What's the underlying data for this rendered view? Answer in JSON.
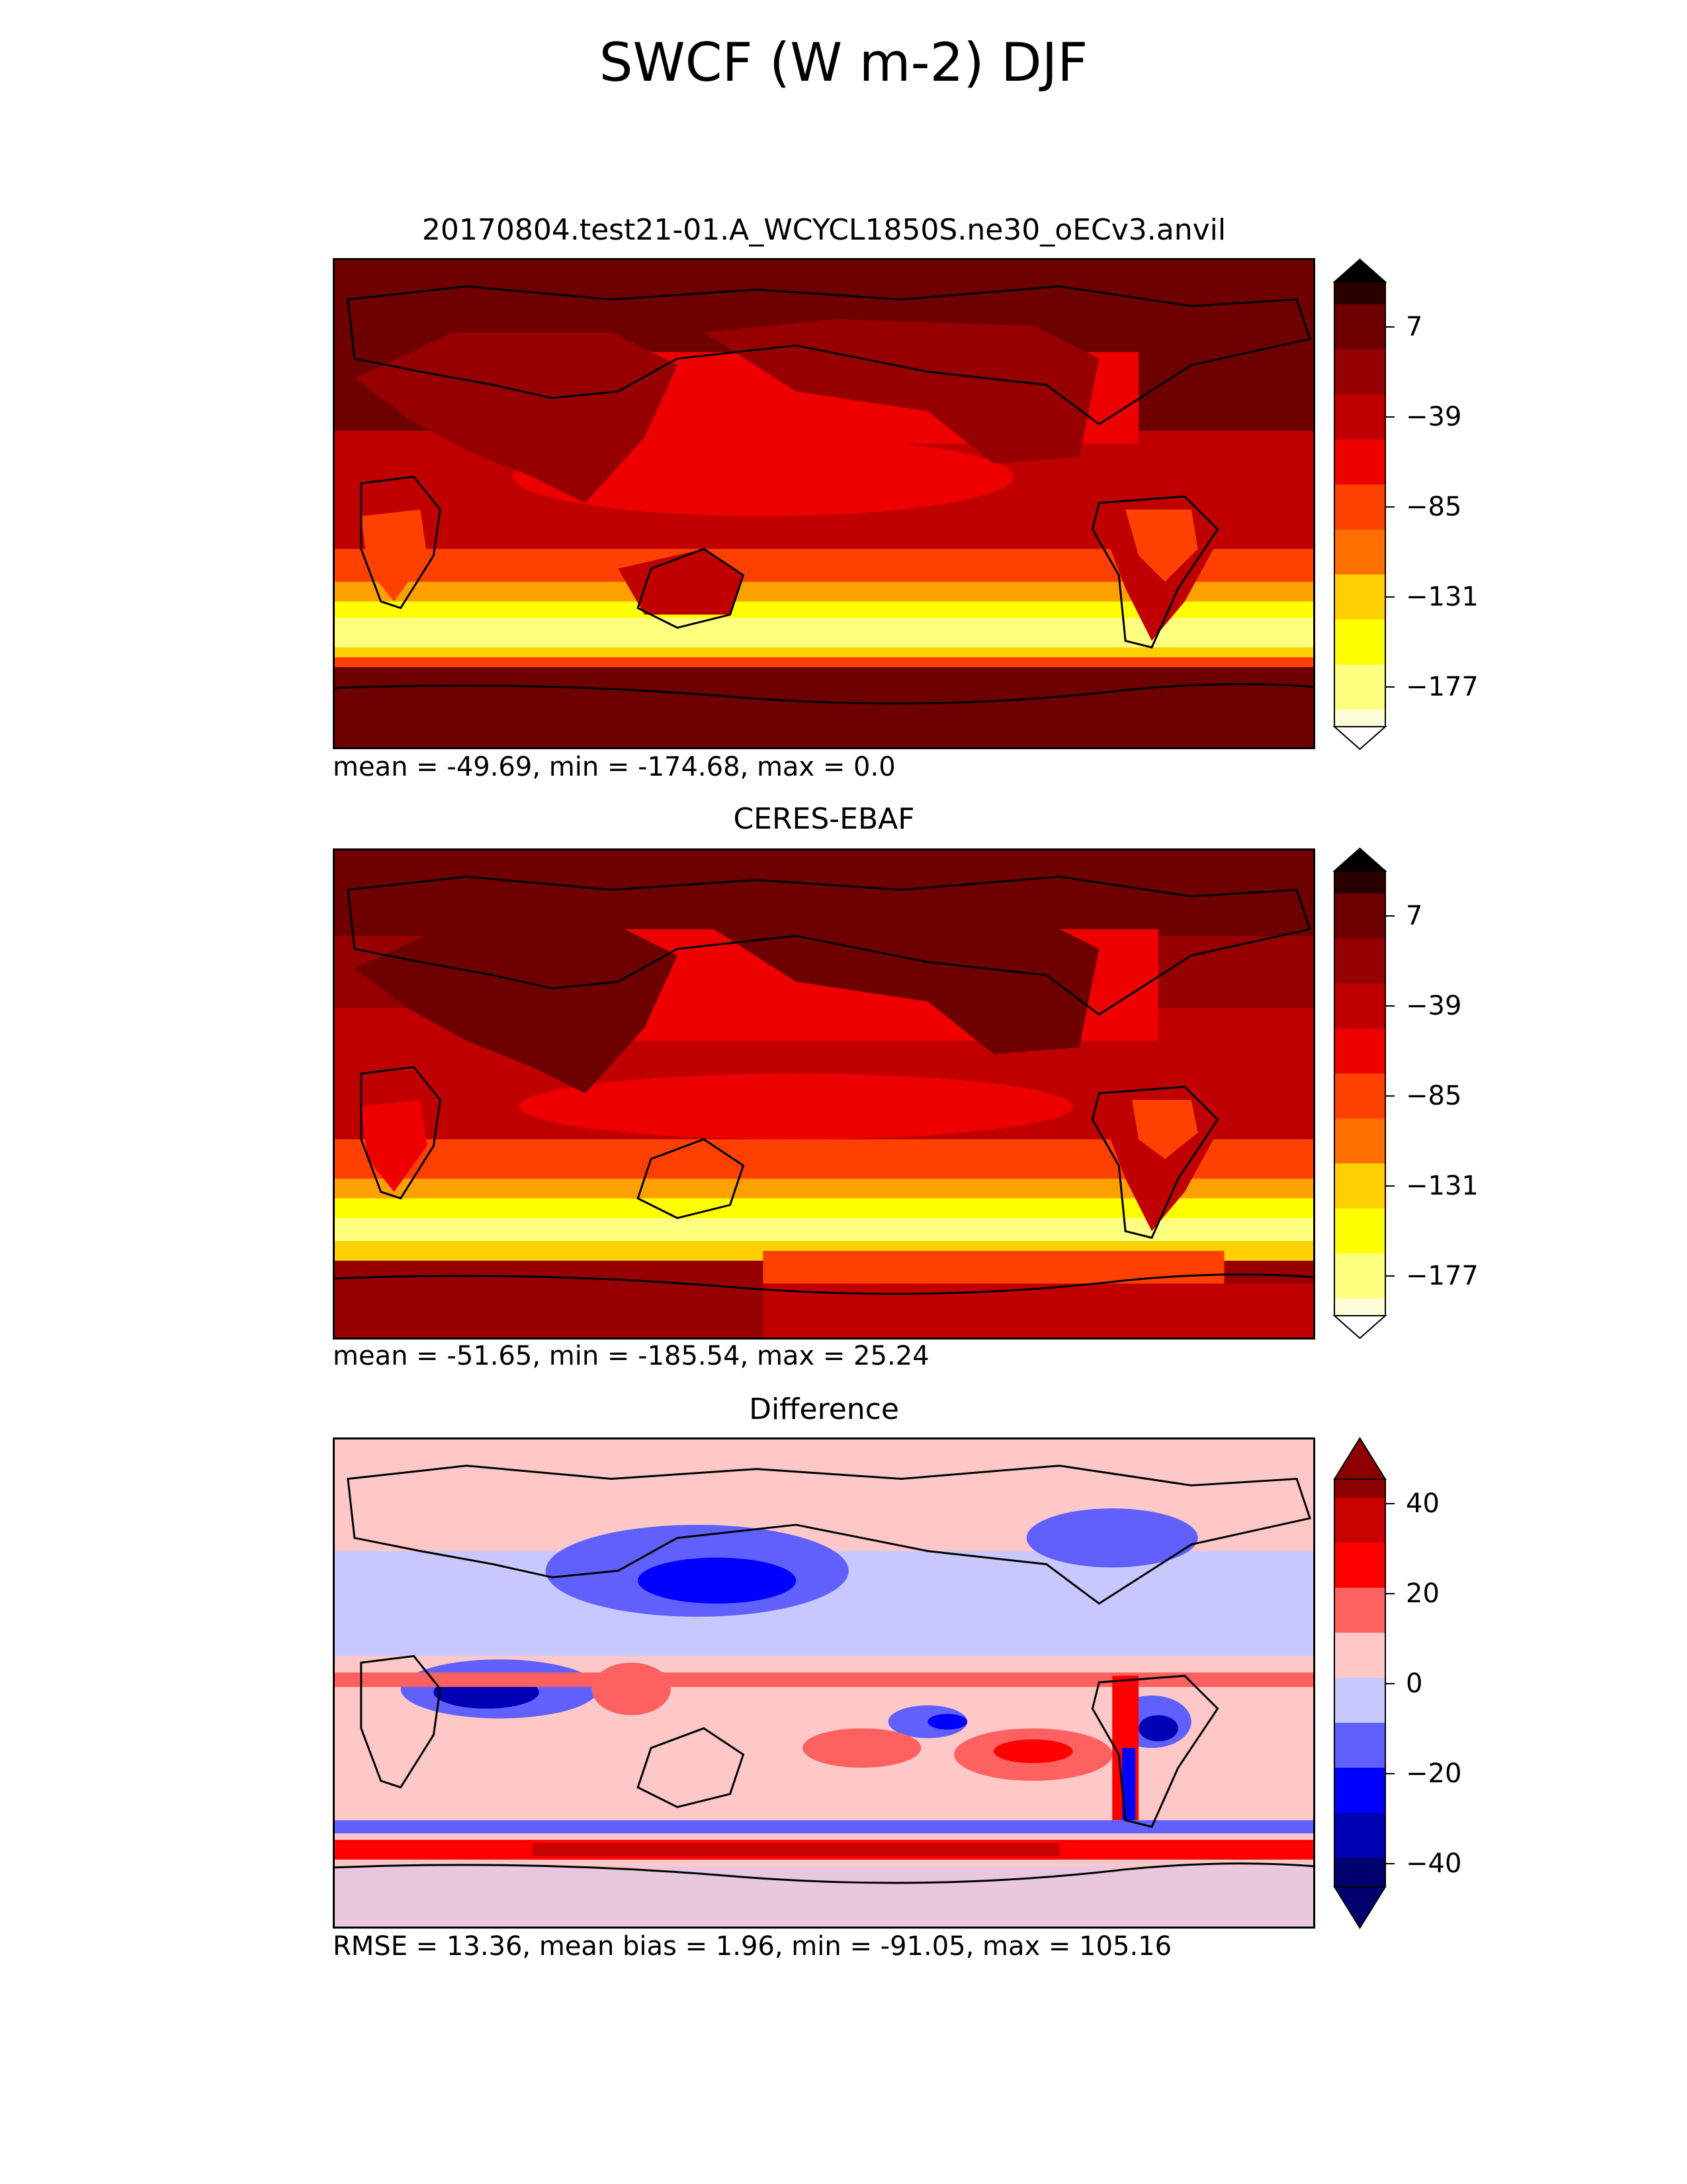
{
  "figure": {
    "title": "SWCF (W m-2) DJF"
  },
  "panels": [
    {
      "title": "20170804.test21-01.A_WCYCL1850S.ne30_oECv3.anvil",
      "stats": "mean = -49.69, min = -174.68, max = 0.0",
      "colormap": "hot",
      "colors": [
        "#fffdd8",
        "#ffff80",
        "#ffff00",
        "#ffd000",
        "#ffa000",
        "#ff7000",
        "#ff4000",
        "#ee0000",
        "#c00000",
        "#960000",
        "#6e0000",
        "#2b0000"
      ],
      "colorbar_ticks": [
        "7",
        "−39",
        "−85",
        "−131",
        "−177"
      ]
    },
    {
      "title": "CERES-EBAF",
      "stats": "mean = -51.65, min = -185.54, max = 25.24",
      "colormap": "hot",
      "colors": [
        "#fffdd8",
        "#ffff80",
        "#ffff00",
        "#ffd000",
        "#ffa000",
        "#ff7000",
        "#ff4000",
        "#ee0000",
        "#c00000",
        "#960000",
        "#6e0000",
        "#2b0000"
      ],
      "colorbar_ticks": [
        "7",
        "−39",
        "−85",
        "−131",
        "−177"
      ]
    },
    {
      "title": "Difference",
      "stats": "RMSE = 13.36, mean bias = 1.96, min = -91.05, max = 105.16",
      "colormap": "seismic",
      "colors": [
        "#00006e",
        "#0000b4",
        "#0000ff",
        "#6060ff",
        "#c8c8ff",
        "#ffc8c8",
        "#ff6060",
        "#ff0000",
        "#c80000",
        "#8c0000"
      ],
      "colorbar_ticks": [
        "40",
        "20",
        "0",
        "−20",
        "−40"
      ]
    }
  ]
}
